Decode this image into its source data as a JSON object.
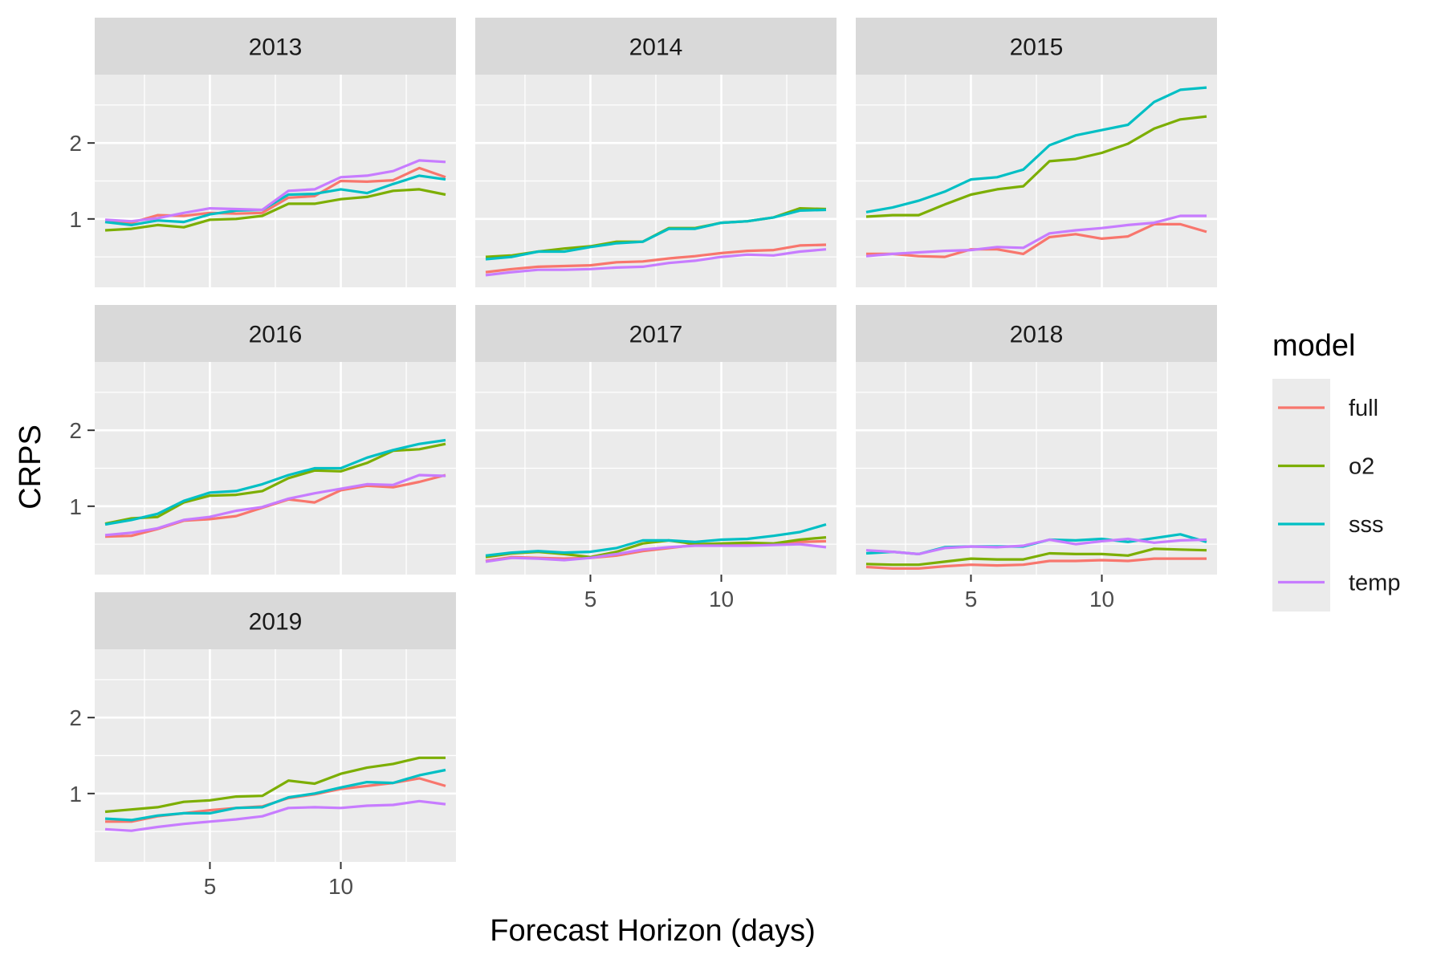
{
  "chart_data": {
    "type": "line",
    "facet_layout": {
      "columns": 3,
      "facets": 7
    },
    "xlabel": "Forecast Horizon (days)",
    "ylabel": "CRPS",
    "x": [
      1,
      2,
      3,
      4,
      5,
      6,
      7,
      8,
      9,
      10,
      11,
      12,
      13,
      14
    ],
    "xlim": [
      0.6,
      14.4
    ],
    "ylim": [
      0.1,
      2.9
    ],
    "x_ticks": [
      5,
      10
    ],
    "x_tick_labels": [
      "5",
      "10"
    ],
    "y_ticks": [
      1,
      2
    ],
    "y_tick_labels": [
      "1",
      "2"
    ],
    "grid": true,
    "legend": {
      "title": "model",
      "position": "right"
    },
    "series_styles": [
      {
        "name": "full",
        "color": "#F8766D"
      },
      {
        "name": "o2",
        "color": "#7CAE00"
      },
      {
        "name": "sss",
        "color": "#00BFC4"
      },
      {
        "name": "temp",
        "color": "#C77CFF"
      }
    ],
    "facets": [
      {
        "label": "2013",
        "series": [
          {
            "name": "full",
            "values": [
              0.97,
              0.95,
              1.05,
              1.04,
              1.08,
              1.07,
              1.08,
              1.28,
              1.3,
              1.5,
              1.49,
              1.51,
              1.67,
              1.55
            ]
          },
          {
            "name": "o2",
            "values": [
              0.85,
              0.87,
              0.92,
              0.89,
              0.99,
              1.0,
              1.04,
              1.2,
              1.2,
              1.26,
              1.29,
              1.37,
              1.39,
              1.32
            ]
          },
          {
            "name": "sss",
            "values": [
              0.96,
              0.92,
              0.98,
              0.96,
              1.06,
              1.11,
              1.12,
              1.32,
              1.33,
              1.39,
              1.34,
              1.46,
              1.57,
              1.52
            ]
          },
          {
            "name": "temp",
            "values": [
              0.99,
              0.97,
              1.01,
              1.08,
              1.14,
              1.13,
              1.12,
              1.37,
              1.39,
              1.55,
              1.57,
              1.63,
              1.77,
              1.75
            ]
          }
        ]
      },
      {
        "label": "2014",
        "series": [
          {
            "name": "full",
            "values": [
              0.3,
              0.34,
              0.37,
              0.38,
              0.39,
              0.43,
              0.44,
              0.48,
              0.51,
              0.55,
              0.58,
              0.59,
              0.65,
              0.66
            ]
          },
          {
            "name": "o2",
            "values": [
              0.5,
              0.52,
              0.57,
              0.61,
              0.64,
              0.7,
              0.7,
              0.88,
              0.88,
              0.95,
              0.97,
              1.02,
              1.14,
              1.13
            ]
          },
          {
            "name": "sss",
            "values": [
              0.47,
              0.5,
              0.57,
              0.57,
              0.63,
              0.68,
              0.7,
              0.87,
              0.87,
              0.95,
              0.97,
              1.02,
              1.11,
              1.12
            ]
          },
          {
            "name": "temp",
            "values": [
              0.26,
              0.3,
              0.33,
              0.33,
              0.34,
              0.36,
              0.37,
              0.42,
              0.45,
              0.5,
              0.53,
              0.52,
              0.57,
              0.6
            ]
          }
        ]
      },
      {
        "label": "2015",
        "series": [
          {
            "name": "full",
            "values": [
              0.54,
              0.54,
              0.51,
              0.5,
              0.6,
              0.6,
              0.54,
              0.76,
              0.8,
              0.74,
              0.77,
              0.93,
              0.93,
              0.83
            ]
          },
          {
            "name": "o2",
            "values": [
              1.03,
              1.05,
              1.05,
              1.19,
              1.32,
              1.39,
              1.43,
              1.76,
              1.79,
              1.87,
              1.99,
              2.19,
              2.31,
              2.35
            ]
          },
          {
            "name": "sss",
            "values": [
              1.09,
              1.15,
              1.24,
              1.36,
              1.52,
              1.55,
              1.65,
              1.97,
              2.1,
              2.17,
              2.24,
              2.54,
              2.7,
              2.73
            ]
          },
          {
            "name": "temp",
            "values": [
              0.51,
              0.54,
              0.56,
              0.58,
              0.59,
              0.63,
              0.62,
              0.81,
              0.85,
              0.88,
              0.92,
              0.95,
              1.04,
              1.04
            ]
          }
        ]
      },
      {
        "label": "2016",
        "series": [
          {
            "name": "full",
            "values": [
              0.6,
              0.61,
              0.7,
              0.81,
              0.83,
              0.87,
              0.98,
              1.09,
              1.05,
              1.21,
              1.27,
              1.25,
              1.32,
              1.41
            ]
          },
          {
            "name": "o2",
            "values": [
              0.77,
              0.84,
              0.86,
              1.05,
              1.14,
              1.15,
              1.2,
              1.37,
              1.47,
              1.46,
              1.57,
              1.73,
              1.75,
              1.82
            ]
          },
          {
            "name": "sss",
            "values": [
              0.76,
              0.82,
              0.9,
              1.07,
              1.18,
              1.2,
              1.29,
              1.41,
              1.5,
              1.5,
              1.64,
              1.74,
              1.82,
              1.87
            ]
          },
          {
            "name": "temp",
            "values": [
              0.62,
              0.65,
              0.71,
              0.82,
              0.86,
              0.94,
              0.99,
              1.1,
              1.17,
              1.23,
              1.29,
              1.28,
              1.41,
              1.4
            ]
          }
        ]
      },
      {
        "label": "2017",
        "series": [
          {
            "name": "full",
            "values": [
              0.28,
              0.33,
              0.32,
              0.31,
              0.32,
              0.35,
              0.41,
              0.45,
              0.49,
              0.49,
              0.5,
              0.5,
              0.53,
              0.54
            ]
          },
          {
            "name": "o2",
            "values": [
              0.33,
              0.38,
              0.4,
              0.37,
              0.33,
              0.4,
              0.51,
              0.55,
              0.5,
              0.51,
              0.52,
              0.51,
              0.56,
              0.59
            ]
          },
          {
            "name": "sss",
            "values": [
              0.35,
              0.39,
              0.41,
              0.39,
              0.4,
              0.45,
              0.55,
              0.55,
              0.53,
              0.56,
              0.57,
              0.61,
              0.66,
              0.76
            ]
          },
          {
            "name": "temp",
            "values": [
              0.27,
              0.32,
              0.31,
              0.29,
              0.32,
              0.37,
              0.43,
              0.46,
              0.48,
              0.48,
              0.48,
              0.49,
              0.5,
              0.46
            ]
          }
        ]
      },
      {
        "label": "2018",
        "series": [
          {
            "name": "full",
            "values": [
              0.2,
              0.18,
              0.18,
              0.21,
              0.23,
              0.22,
              0.23,
              0.28,
              0.28,
              0.29,
              0.28,
              0.31,
              0.31,
              0.31
            ]
          },
          {
            "name": "o2",
            "values": [
              0.24,
              0.23,
              0.23,
              0.27,
              0.31,
              0.3,
              0.3,
              0.38,
              0.37,
              0.37,
              0.35,
              0.44,
              0.43,
              0.42
            ]
          },
          {
            "name": "sss",
            "values": [
              0.38,
              0.4,
              0.37,
              0.46,
              0.47,
              0.47,
              0.47,
              0.56,
              0.55,
              0.57,
              0.53,
              0.58,
              0.63,
              0.53
            ]
          },
          {
            "name": "temp",
            "values": [
              0.42,
              0.4,
              0.37,
              0.45,
              0.47,
              0.46,
              0.48,
              0.56,
              0.5,
              0.54,
              0.57,
              0.52,
              0.55,
              0.56
            ]
          }
        ]
      },
      {
        "label": "2019",
        "series": [
          {
            "name": "full",
            "values": [
              0.63,
              0.63,
              0.7,
              0.74,
              0.78,
              0.81,
              0.83,
              0.94,
              0.99,
              1.06,
              1.1,
              1.14,
              1.2,
              1.1
            ]
          },
          {
            "name": "o2",
            "values": [
              0.76,
              0.79,
              0.82,
              0.89,
              0.91,
              0.96,
              0.97,
              1.17,
              1.13,
              1.26,
              1.34,
              1.39,
              1.47,
              1.47
            ]
          },
          {
            "name": "sss",
            "values": [
              0.67,
              0.65,
              0.71,
              0.74,
              0.74,
              0.81,
              0.82,
              0.95,
              1.0,
              1.08,
              1.15,
              1.14,
              1.24,
              1.31
            ]
          },
          {
            "name": "temp",
            "values": [
              0.53,
              0.51,
              0.56,
              0.6,
              0.63,
              0.66,
              0.7,
              0.81,
              0.82,
              0.81,
              0.84,
              0.85,
              0.9,
              0.86
            ]
          }
        ]
      }
    ]
  }
}
